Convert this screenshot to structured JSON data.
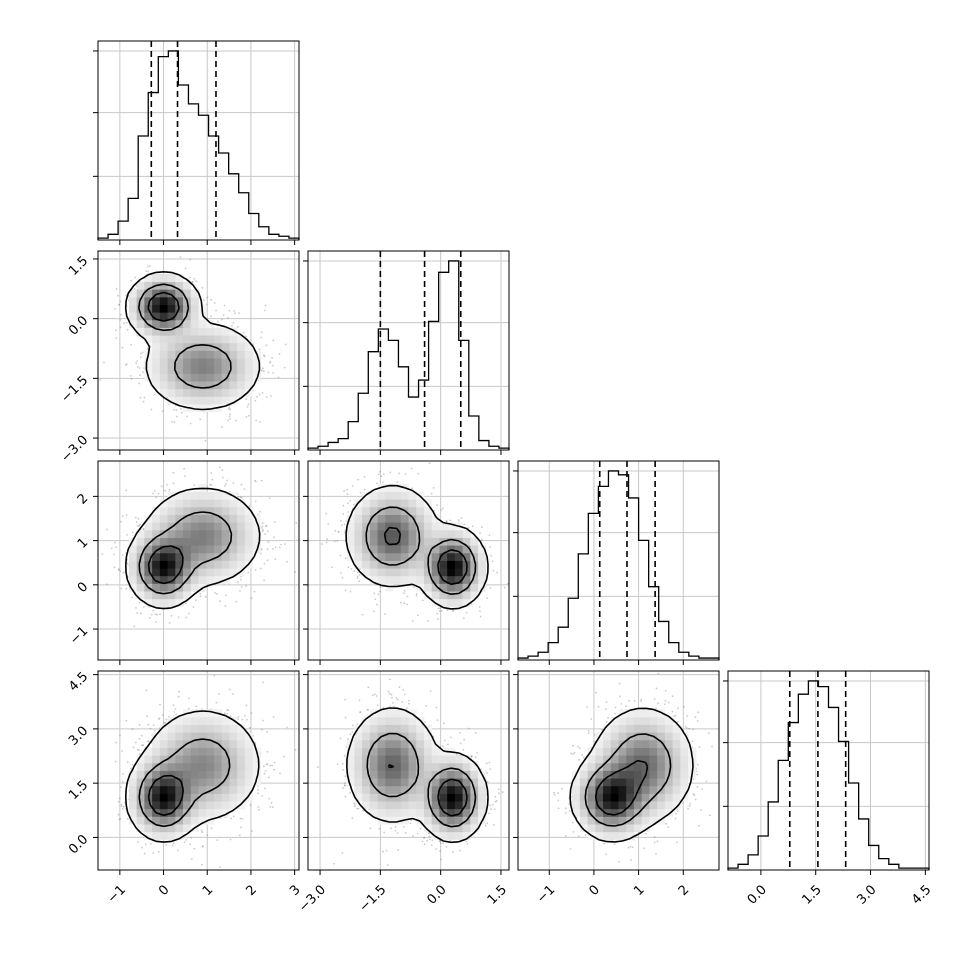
{
  "chart_data": {
    "type": "corner",
    "title": "",
    "parameters": [
      {
        "xlim": [
          -1.5,
          3.1
        ],
        "ticks": [
          -1,
          0,
          1,
          2,
          3
        ],
        "labels": [
          "−1",
          "0",
          "1",
          "2",
          "3"
        ]
      },
      {
        "xlim": [
          -3.3,
          1.7
        ],
        "ticks": [
          -3.0,
          -1.5,
          0.0,
          1.5
        ],
        "labels": [
          "−3.0",
          "−1.5",
          "0.0",
          "1.5"
        ]
      },
      {
        "xlim": [
          -1.7,
          2.8
        ],
        "ticks": [
          -1,
          0,
          1,
          2
        ],
        "labels": [
          "−1",
          "0",
          "1",
          "2"
        ]
      },
      {
        "xlim": [
          -0.9,
          4.6
        ],
        "ticks": [
          0.0,
          1.5,
          3.0,
          4.5
        ],
        "labels": [
          "0.0",
          "1.5",
          "3.0",
          "4.5"
        ]
      }
    ],
    "quantiles": [
      [
        -0.28,
        0.32,
        1.2
      ],
      [
        -1.5,
        -0.4,
        0.5
      ],
      [
        0.13,
        0.74,
        1.37
      ],
      [
        0.79,
        1.56,
        2.32
      ]
    ],
    "histograms": [
      {
        "edges_range": [
          -1.5,
          3.1
        ],
        "counts": [
          0.01,
          0.03,
          0.1,
          0.22,
          0.55,
          0.78,
          0.97,
          1.0,
          0.82,
          0.72,
          0.66,
          0.55,
          0.46,
          0.35,
          0.25,
          0.14,
          0.07,
          0.03,
          0.02,
          0.01
        ]
      },
      {
        "edges_range": [
          -3.3,
          1.7
        ],
        "counts": [
          0.01,
          0.02,
          0.04,
          0.06,
          0.15,
          0.3,
          0.52,
          0.64,
          0.58,
          0.44,
          0.28,
          0.37,
          0.68,
          0.94,
          1.0,
          0.58,
          0.18,
          0.05,
          0.02,
          0.01
        ]
      },
      {
        "edges_range": [
          -1.7,
          2.8
        ],
        "counts": [
          0.01,
          0.02,
          0.04,
          0.09,
          0.17,
          0.32,
          0.55,
          0.76,
          0.9,
          0.98,
          0.96,
          0.84,
          0.62,
          0.38,
          0.2,
          0.09,
          0.04,
          0.02,
          0.01,
          0.01
        ]
      },
      {
        "edges_range": [
          -0.9,
          4.6
        ],
        "counts": [
          0.01,
          0.03,
          0.08,
          0.18,
          0.36,
          0.58,
          0.78,
          0.93,
          1.0,
          0.97,
          0.86,
          0.68,
          0.46,
          0.27,
          0.13,
          0.06,
          0.03,
          0.01,
          0.01,
          0.01
        ]
      }
    ],
    "components": [
      {
        "weight": 0.45,
        "mean": [
          0.0,
          0.3,
          0.4,
          1.1
        ],
        "sd": [
          0.35,
          0.35,
          0.38,
          0.5
        ]
      },
      {
        "weight": 0.55,
        "mean": [
          0.9,
          -1.2,
          1.1,
          2.0
        ],
        "sd": [
          0.6,
          0.5,
          0.5,
          0.7
        ]
      }
    ],
    "contour_levels": [
      0.95,
      0.72,
      0.4
    ],
    "grid": true,
    "legend": "none"
  }
}
